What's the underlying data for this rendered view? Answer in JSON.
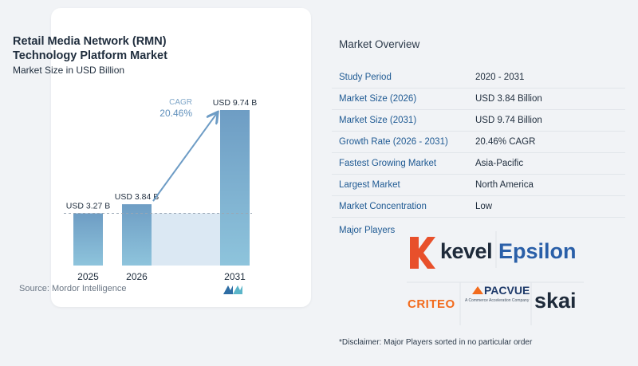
{
  "left_panel": {
    "title_line1": "Retail Media Network (RMN)",
    "title_line2": "Technology Platform Market",
    "subtitle": "Market Size in USD Billion",
    "source": "Source:  Mordor Intelligence"
  },
  "chart_data": {
    "type": "bar",
    "categories": [
      "2025",
      "2026",
      "2031"
    ],
    "values": [
      3.27,
      3.84,
      9.74
    ],
    "value_labels": [
      "USD 3.27 B",
      "USD 3.84 B",
      "USD 9.74 B"
    ],
    "title": "Retail Media Network (RMN) Technology Platform Market",
    "subtitle": "Market Size in USD Billion",
    "annotation": {
      "label": "CAGR",
      "value": "20.46%"
    },
    "colors": {
      "bar_top": "#6e9dc4",
      "bar_bottom": "#8ec4dc",
      "band": "#dbe8f3",
      "arrow": "#6d9cc5"
    },
    "ylim": [
      0,
      10
    ]
  },
  "overview": {
    "title": "Market Overview",
    "rows": [
      {
        "key": "Study Period",
        "value": "2020 - 2031"
      },
      {
        "key": "Market Size (2026)",
        "value": "USD 3.84 Billion"
      },
      {
        "key": "Market Size (2031)",
        "value": "USD 9.74 Billion"
      },
      {
        "key": "Growth Rate (2026 - 2031)",
        "value": "20.46% CAGR"
      },
      {
        "key": "Fastest Growing Market",
        "value": "Asia-Pacific"
      },
      {
        "key": "Largest Market",
        "value": "North America"
      },
      {
        "key": "Market Concentration",
        "value": "Low"
      }
    ],
    "players_label": "Major Players",
    "players": {
      "kevel": "kevel",
      "epsilon": "Epsilon",
      "criteo": "CRITEO",
      "pacvue": "PACVUE",
      "pacvue_tagline": "A Commerce Acceleration Company",
      "skai": "skai"
    },
    "disclaimer": "*Disclaimer: Major Players sorted in no particular order"
  }
}
